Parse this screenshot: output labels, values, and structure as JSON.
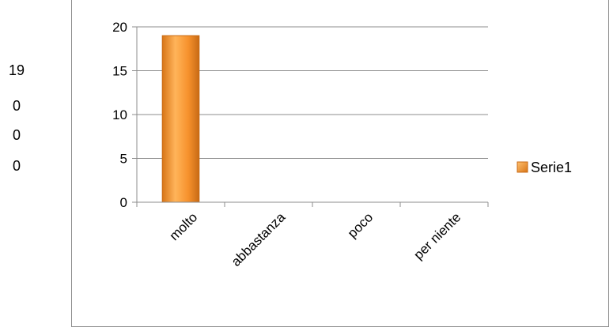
{
  "side_values": [
    "19",
    "0",
    "0",
    "0"
  ],
  "chart_data": {
    "type": "bar",
    "categories": [
      "molto",
      "abbastanza",
      "poco",
      "per niente"
    ],
    "series": [
      {
        "name": "Serie1",
        "values": [
          19,
          0,
          0,
          0
        ]
      }
    ],
    "ylim": [
      0,
      20
    ],
    "yticks": [
      "0",
      "5",
      "10",
      "15",
      "20"
    ],
    "grid": true,
    "legend": "right",
    "colors": {
      "bar_light": "#ffc06e",
      "bar_mid": "#f7922d",
      "bar_dark": "#c86a14",
      "grid": "#8c8c8c"
    }
  }
}
